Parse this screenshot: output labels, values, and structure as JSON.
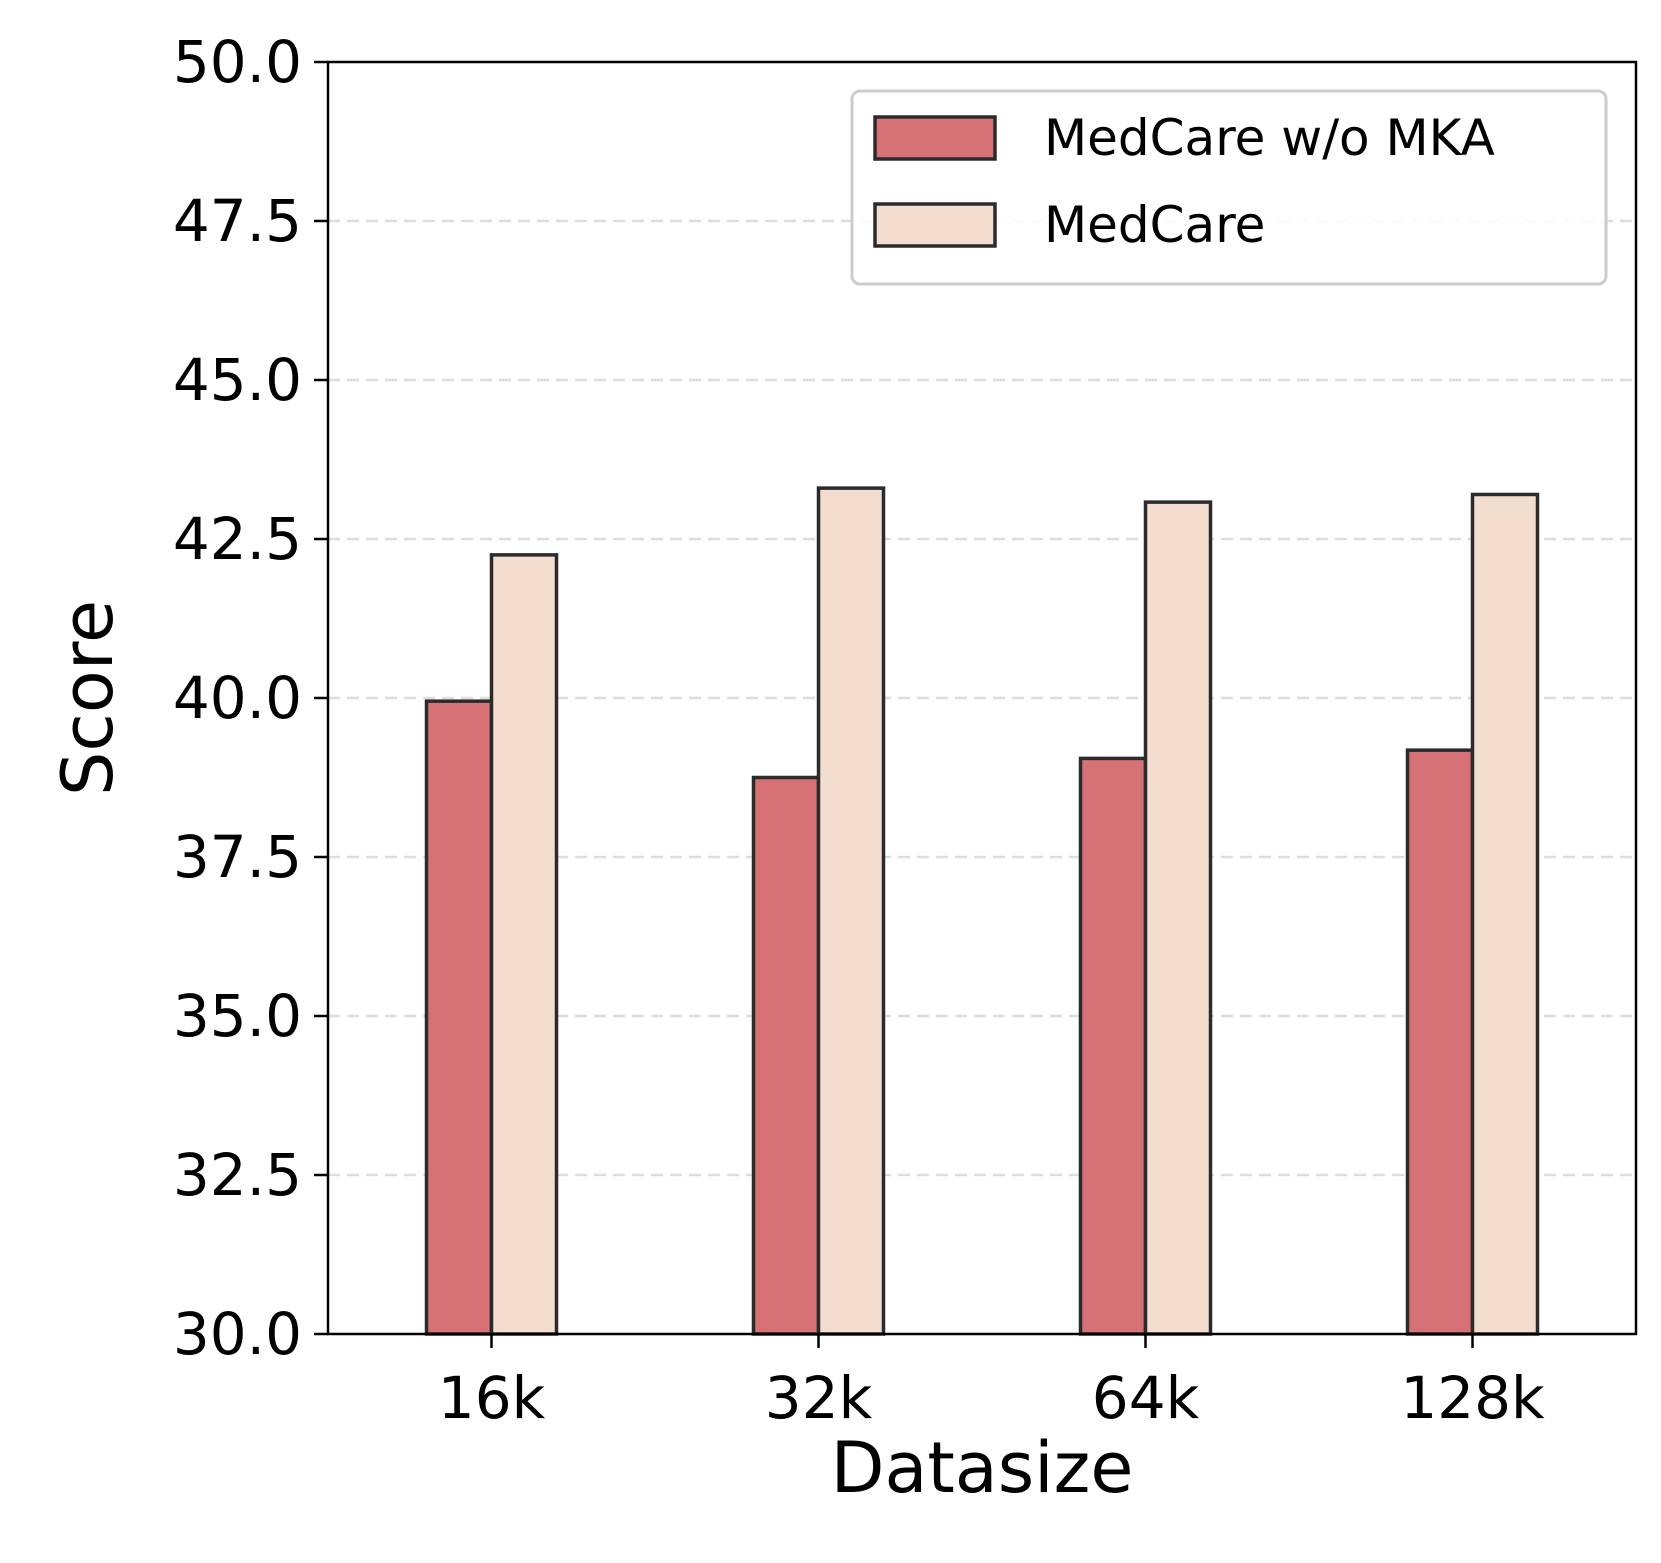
{
  "chart_data": {
    "type": "bar",
    "title": "",
    "xlabel": "Datasize",
    "ylabel": "Score",
    "categories": [
      "16k",
      "32k",
      "64k",
      "128k"
    ],
    "series": [
      {
        "name": "MedCare w/o MKA",
        "values": [
          39.95,
          38.75,
          39.05,
          39.18
        ],
        "color": "#d67276"
      },
      {
        "name": "MedCare",
        "values": [
          42.25,
          43.3,
          43.08,
          43.2
        ],
        "color": "#f2ddce"
      }
    ],
    "ylim": [
      30.0,
      50.0
    ],
    "yticks": [
      "30.0",
      "32.5",
      "35.0",
      "37.5",
      "40.0",
      "42.5",
      "45.0",
      "47.5",
      "50.0"
    ],
    "grid": "horizontal dashed",
    "legend_position": "top-right"
  },
  "colors": {
    "bar_edge": "#2b2b2b",
    "grid": "#dddddd",
    "axis": "#000000"
  }
}
